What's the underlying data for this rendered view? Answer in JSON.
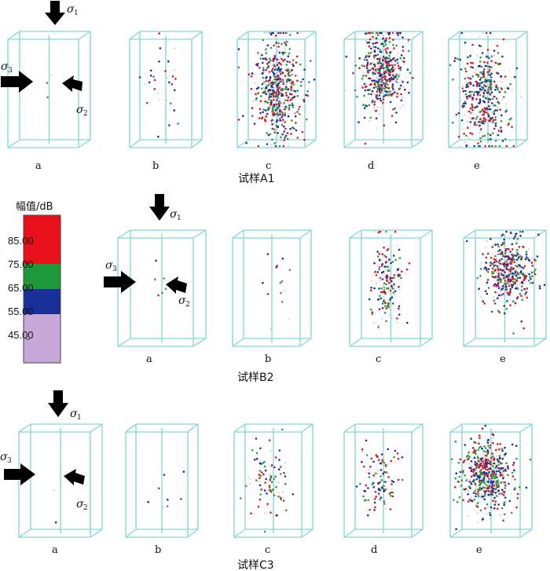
{
  "legend": {
    "title": "幅值/dB",
    "ticks": [
      "85.00",
      "75.00",
      "65.00",
      "55.00",
      "45.00"
    ],
    "colors": [
      "#e8101a",
      "#1f9a3a",
      "#1a2e9a",
      "#c8a8d8"
    ]
  },
  "colors": {
    "box_edge": "#7fd6d8",
    "red": "#e8101a",
    "green": "#2e9e3a",
    "blue": "#1c2fa0",
    "lilac": "#c9b3dd"
  },
  "stress_labels": {
    "sigma1": "σ",
    "sigma1_sub": "1",
    "sigma2": "σ",
    "sigma2_sub": "2",
    "sigma3": "σ",
    "sigma3_sub": "3"
  },
  "rows": [
    {
      "caption": "试样A1",
      "panels": [
        {
          "label": "a",
          "density": 3
        },
        {
          "label": "b",
          "density": 30
        },
        {
          "label": "c",
          "density": 520
        },
        {
          "label": "d",
          "density": 460
        },
        {
          "label": "e",
          "density": 420
        }
      ]
    },
    {
      "caption": "试样B2",
      "panels": [
        {
          "label": "a",
          "density": 6
        },
        {
          "label": "b",
          "density": 14
        },
        {
          "label": "c",
          "density": 160
        },
        {
          "label": "e",
          "density": 420
        }
      ]
    },
    {
      "caption": "试样C3",
      "panels": [
        {
          "label": "a",
          "density": 2
        },
        {
          "label": "b",
          "density": 8
        },
        {
          "label": "c",
          "density": 90
        },
        {
          "label": "d",
          "density": 110
        },
        {
          "label": "e",
          "density": 520
        }
      ]
    }
  ]
}
